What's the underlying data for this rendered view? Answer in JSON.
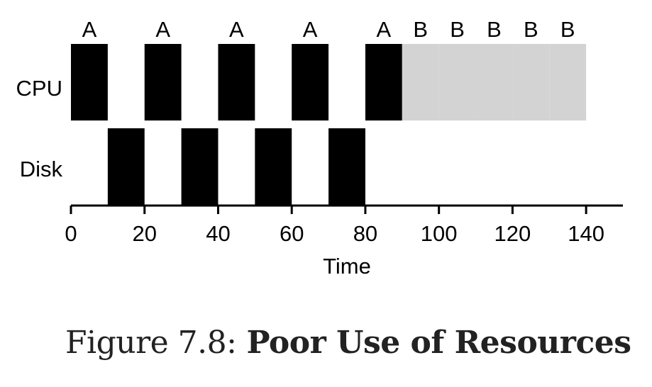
{
  "chart_data": {
    "type": "gantt",
    "rows": [
      "CPU",
      "Disk"
    ],
    "xlabel": "Time",
    "xlim": [
      0,
      150
    ],
    "xticks": [
      0,
      20,
      40,
      60,
      80,
      100,
      120,
      140
    ],
    "legend": "none",
    "grid": false,
    "colors": {
      "A": "#000000",
      "B": "#d3d3d3",
      "axis": "#000000"
    },
    "segments": [
      {
        "row": "CPU",
        "job": "A",
        "start": 0,
        "end": 10,
        "label": "A"
      },
      {
        "row": "CPU",
        "job": "A",
        "start": 20,
        "end": 30,
        "label": "A"
      },
      {
        "row": "CPU",
        "job": "A",
        "start": 40,
        "end": 50,
        "label": "A"
      },
      {
        "row": "CPU",
        "job": "A",
        "start": 60,
        "end": 70,
        "label": "A"
      },
      {
        "row": "CPU",
        "job": "A",
        "start": 80,
        "end": 90,
        "label": "A"
      },
      {
        "row": "CPU",
        "job": "B",
        "start": 90,
        "end": 100,
        "label": "B"
      },
      {
        "row": "CPU",
        "job": "B",
        "start": 100,
        "end": 110,
        "label": "B"
      },
      {
        "row": "CPU",
        "job": "B",
        "start": 110,
        "end": 120,
        "label": "B"
      },
      {
        "row": "CPU",
        "job": "B",
        "start": 120,
        "end": 130,
        "label": "B"
      },
      {
        "row": "CPU",
        "job": "B",
        "start": 130,
        "end": 140,
        "label": "B"
      },
      {
        "row": "Disk",
        "job": "A",
        "start": 10,
        "end": 20,
        "label": ""
      },
      {
        "row": "Disk",
        "job": "A",
        "start": 30,
        "end": 40,
        "label": ""
      },
      {
        "row": "Disk",
        "job": "A",
        "start": 50,
        "end": 60,
        "label": ""
      },
      {
        "row": "Disk",
        "job": "A",
        "start": 70,
        "end": 80,
        "label": ""
      }
    ]
  },
  "caption": {
    "label": "Figure 7.8:",
    "title": "Poor Use of Resources"
  }
}
